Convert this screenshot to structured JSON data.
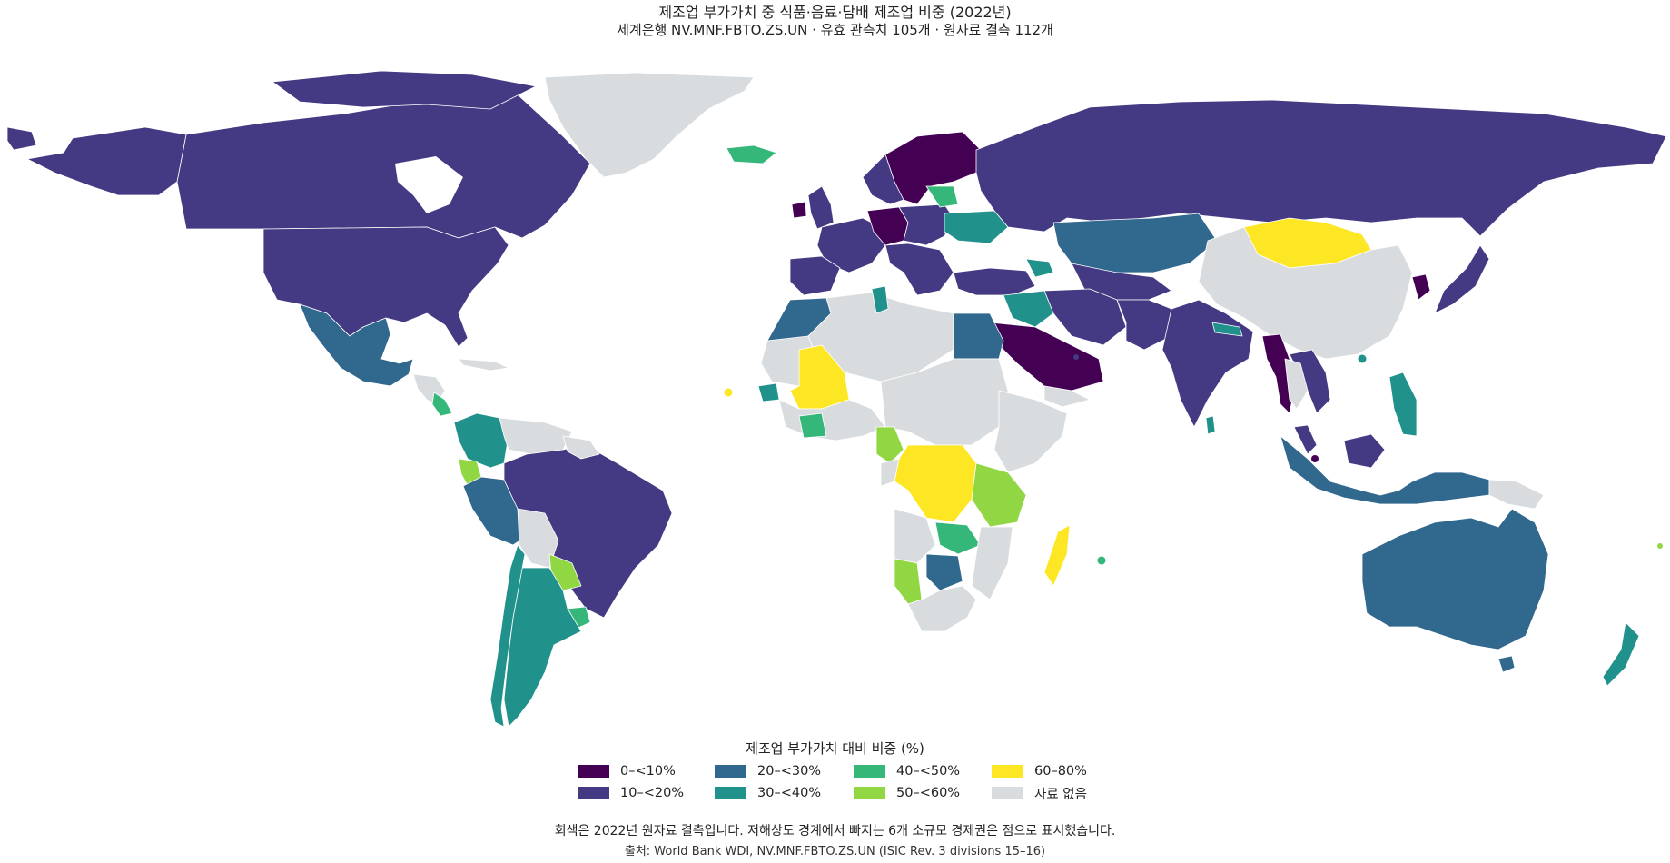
{
  "title": "제조업 부가가치 중 식품·음료·담배 제조업 비중 (2022년)",
  "subtitle": "세계은행 NV.MNF.FBTO.ZS.UN · 유효 관측치 105개 · 원자료 결측 112개",
  "legend": {
    "title": "제조업 부가가치 대비 비중 (%)",
    "items": [
      {
        "label": "0–<10%",
        "color": "#440154"
      },
      {
        "label": "10–<20%",
        "color": "#443983"
      },
      {
        "label": "20–<30%",
        "color": "#31688e"
      },
      {
        "label": "30–<40%",
        "color": "#21918c"
      },
      {
        "label": "40–<50%",
        "color": "#35b779"
      },
      {
        "label": "50–<60%",
        "color": "#90d743"
      },
      {
        "label": "60–80%",
        "color": "#fde725"
      },
      {
        "label": "자료 없음",
        "color": "#d9dcde"
      }
    ]
  },
  "note": "회색은 2022년 원자료 결측입니다. 저해상도 경계에서 빠지는 6개 소규모 경제권은 점으로 표시했습니다.",
  "source": "출처: World Bank WDI, NV.MNF.FBTO.ZS.UN (ISIC Rev. 3 divisions 15–16)"
}
